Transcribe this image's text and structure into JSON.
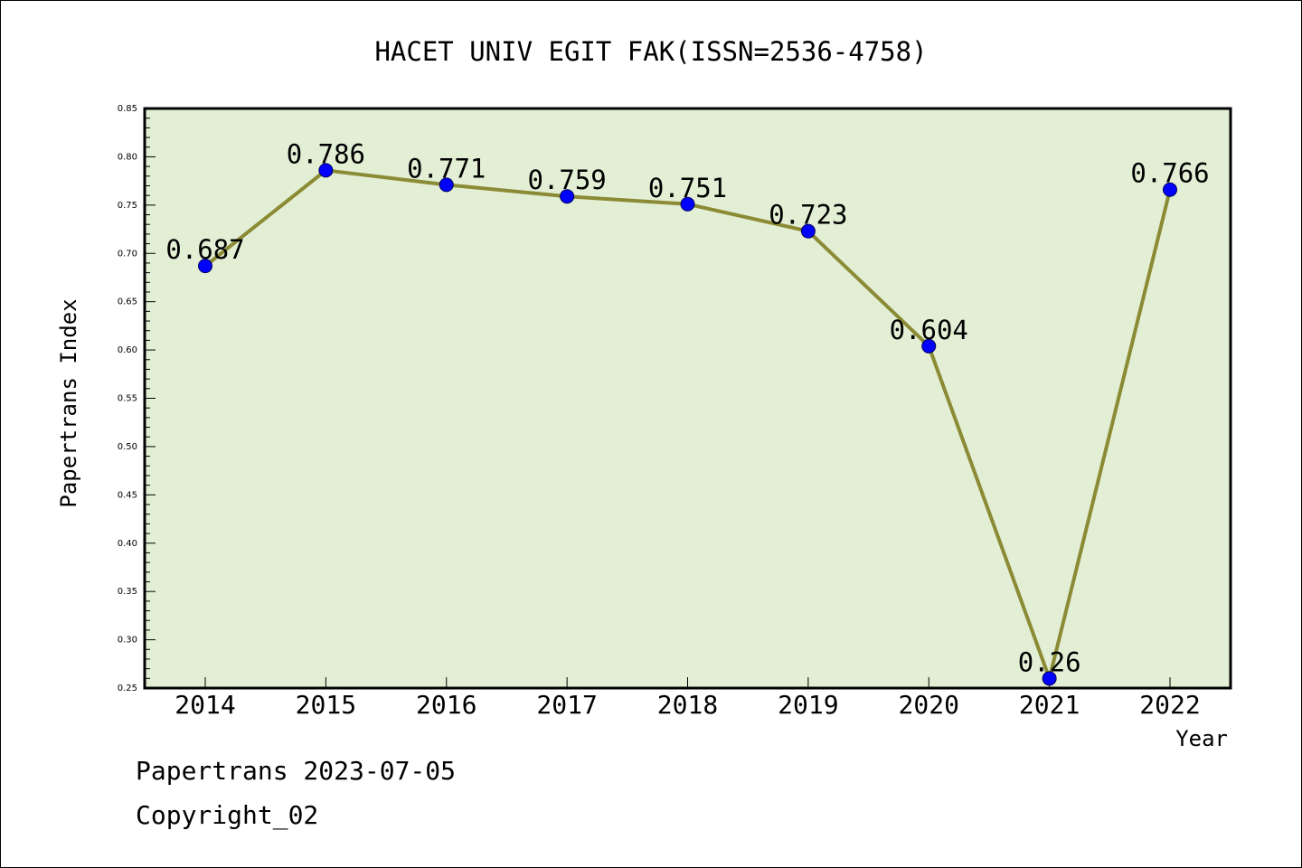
{
  "chart_data": {
    "type": "line",
    "title": "HACET UNIV EGIT FAK(ISSN=2536-4758)",
    "xlabel": "Year",
    "ylabel": "Papertrans Index",
    "categories": [
      "2014",
      "2015",
      "2016",
      "2017",
      "2018",
      "2019",
      "2020",
      "2021",
      "2022"
    ],
    "series": [
      {
        "values": [
          0.687,
          0.786,
          0.771,
          0.759,
          0.751,
          0.723,
          0.604,
          0.26,
          0.766
        ],
        "labels": [
          "0.687",
          "0.786",
          "0.771",
          "0.759",
          "0.751",
          "0.723",
          "0.604",
          "0.26",
          "0.766"
        ]
      }
    ],
    "ylim": [
      0.25,
      0.85
    ],
    "yticks": [
      "0.25",
      "0.30",
      "0.35",
      "0.40",
      "0.45",
      "0.50",
      "0.55",
      "0.60",
      "0.65",
      "0.70",
      "0.75",
      "0.80",
      "0.85"
    ],
    "grid": false,
    "colors": {
      "plot_background": "#e2efd5",
      "line": "#8b8a35",
      "marker": "#0000ff"
    }
  },
  "footer": {
    "line1": "Papertrans 2023-07-05",
    "line2": "Copyright_02"
  }
}
